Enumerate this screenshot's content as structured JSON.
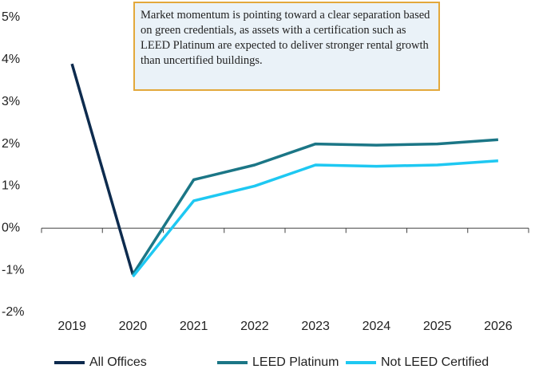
{
  "chart_data": {
    "type": "line",
    "annotation": "Market momentum is pointing toward a clear separation based on green credentials, as assets with a certification such as LEED Platinum are expected to deliver stronger rental growth than uncertified buildings.",
    "categories": [
      "2019",
      "2020",
      "2021",
      "2022",
      "2023",
      "2024",
      "2025",
      "2026"
    ],
    "series": [
      {
        "name": "All Offices",
        "color": "#0d2b4e",
        "values": [
          3.9,
          -1.1,
          null,
          null,
          null,
          null,
          null,
          null
        ]
      },
      {
        "name": "LEED Platinum",
        "color": "#1b7686",
        "values": [
          null,
          -1.1,
          1.15,
          1.5,
          2.0,
          1.97,
          2.0,
          2.1
        ]
      },
      {
        "name": "Not LEED Certified",
        "color": "#1ec8f2",
        "values": [
          null,
          -1.15,
          0.65,
          1.0,
          1.5,
          1.47,
          1.5,
          1.6
        ]
      }
    ],
    "ylim": [
      -2,
      5
    ],
    "yticks": [
      {
        "value": 5,
        "label": "5%"
      },
      {
        "value": 4,
        "label": "4%"
      },
      {
        "value": 3,
        "label": "3%"
      },
      {
        "value": 2,
        "label": "2%"
      },
      {
        "value": 1,
        "label": "1%"
      },
      {
        "value": 0,
        "label": "0%"
      },
      {
        "value": -1,
        "label": "-1%"
      },
      {
        "value": -2,
        "label": "-2%"
      }
    ],
    "grid": false
  }
}
